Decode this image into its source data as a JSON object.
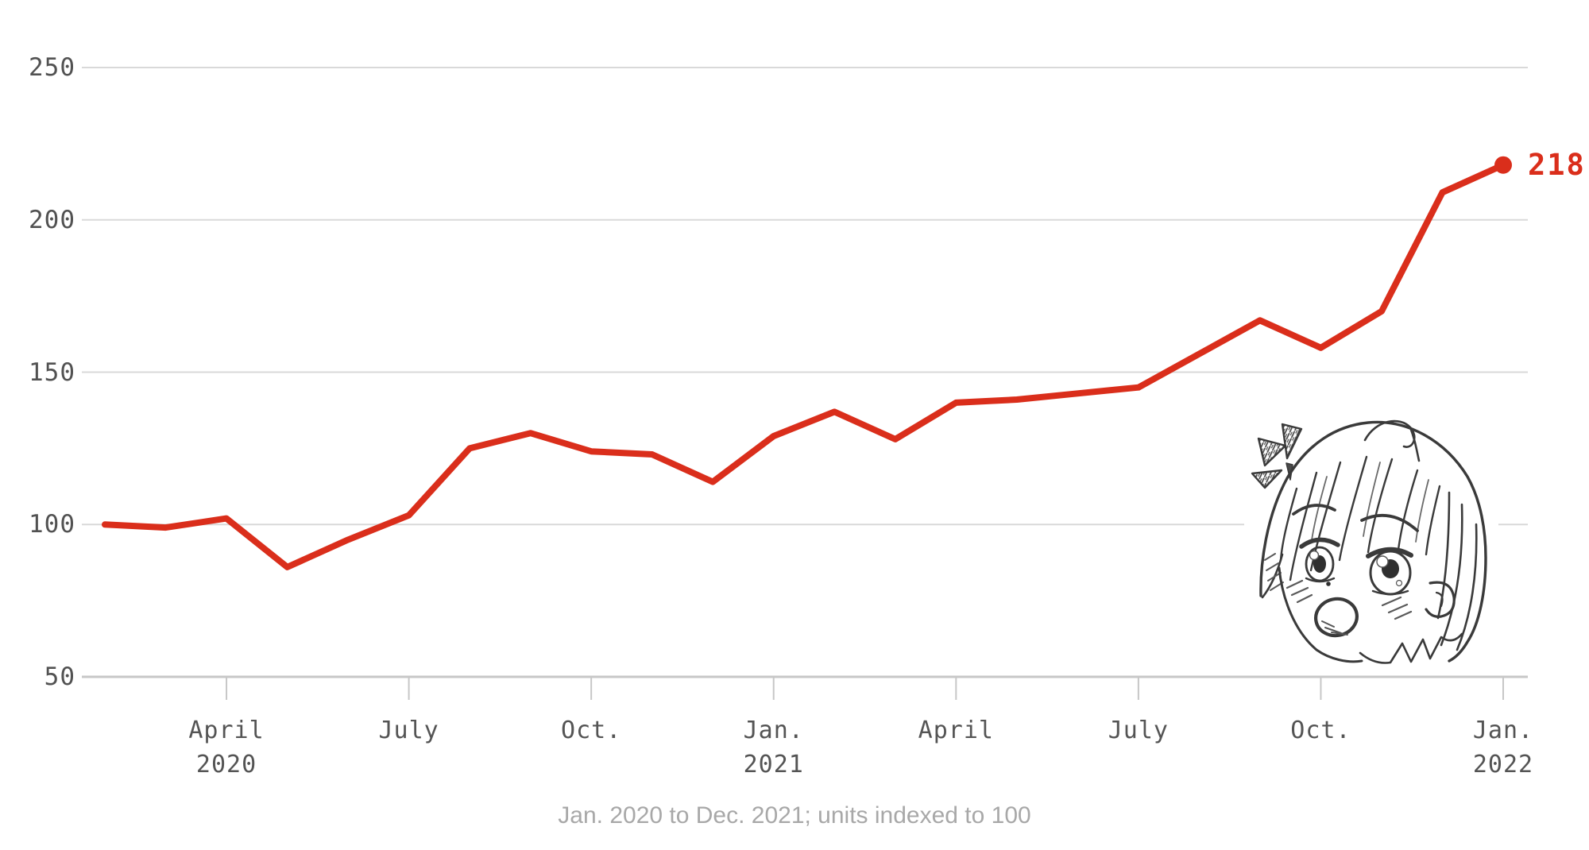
{
  "chart_data": {
    "type": "line",
    "title": "",
    "xlabel": "",
    "ylabel": "",
    "caption": "Jan. 2020 to Dec. 2021; units indexed to 100",
    "x": [
      "Jan. 2020",
      "Feb. 2020",
      "Mar. 2020",
      "Apr. 2020",
      "May 2020",
      "June 2020",
      "July 2020",
      "Aug. 2020",
      "Sep. 2020",
      "Oct. 2020",
      "Nov. 2020",
      "Dec. 2020",
      "Jan. 2021",
      "Feb. 2021",
      "Mar. 2021",
      "Apr. 2021",
      "May 2021",
      "June 2021",
      "July 2021",
      "Aug. 2021",
      "Sep. 2021",
      "Oct. 2021",
      "Nov. 2021",
      "Dec. 2021"
    ],
    "values": [
      100,
      99,
      102,
      86,
      95,
      103,
      125,
      130,
      124,
      123,
      114,
      129,
      137,
      128,
      140,
      141,
      143,
      145,
      156,
      167,
      158,
      170,
      209,
      218
    ],
    "end_label": "218",
    "ylim": [
      50,
      250
    ],
    "y_ticks": [
      250,
      200,
      150,
      100,
      50
    ],
    "x_ticks": [
      {
        "index": 2,
        "line1": "April",
        "line2": "2020"
      },
      {
        "index": 5,
        "line1": "July",
        "line2": ""
      },
      {
        "index": 8,
        "line1": "Oct.",
        "line2": ""
      },
      {
        "index": 11,
        "line1": "Jan.",
        "line2": "2021"
      },
      {
        "index": 14,
        "line1": "April",
        "line2": ""
      },
      {
        "index": 17,
        "line1": "July",
        "line2": ""
      },
      {
        "index": 20,
        "line1": "Oct.",
        "line2": ""
      },
      {
        "index": 23,
        "line1": "Jan.",
        "line2": "2022"
      }
    ],
    "grid": "horizontal",
    "legend": "none"
  },
  "colors": {
    "line_red": "#da2e1b",
    "gridline_gray": "#d9d9d9",
    "axis_gray": "#c7c7c7",
    "label_gray": "#545454",
    "caption_gray": "#a8a8a8",
    "sketch_ink": "#3a3a3a"
  },
  "illustration": {
    "name": "surprised-anime-girl-sketch",
    "description": "hand-drawn pencil sketch of an anime girl with bob haircut looking up in surprise, with manga surprise marks"
  }
}
